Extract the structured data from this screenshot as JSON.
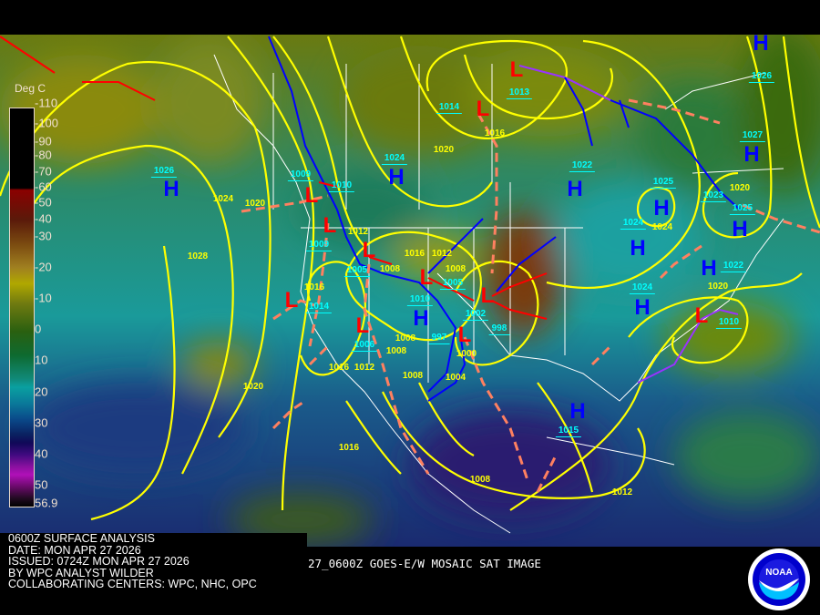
{
  "colorbar": {
    "unit": "Deg C",
    "labels": [
      "-110",
      "-100",
      "-90",
      "-80",
      "-70",
      "-60",
      "-50",
      "-40",
      "-30",
      "-20",
      "-10",
      "0",
      "10",
      "20",
      "30",
      "40",
      "50",
      "56.9"
    ]
  },
  "pressure_systems": [
    "H",
    "H",
    "H",
    "H",
    "H",
    "H",
    "H",
    "H",
    "H",
    "H",
    "H",
    "H",
    "L",
    "L",
    "L",
    "L",
    "L",
    "L",
    "L",
    "L",
    "L",
    "L",
    "L"
  ],
  "center_pressures": [
    "1026",
    "1024",
    "1009",
    "1010",
    "1009",
    "1005",
    "1014",
    "1010",
    "1005",
    "1002",
    "997",
    "998",
    "1006",
    "1014",
    "1013",
    "1022",
    "1025",
    "1024",
    "1023",
    "1026",
    "1027",
    "1025",
    "1022",
    "1024",
    "1010",
    "1015"
  ],
  "isobar_labels": [
    "1024",
    "1020",
    "1028",
    "1012",
    "1008",
    "1016",
    "1012",
    "1008",
    "1016",
    "1008",
    "1008",
    "1000",
    "1004",
    "1016",
    "1012",
    "1008",
    "1020",
    "1016",
    "1008",
    "1012",
    "1016",
    "1020",
    "1024",
    "1020",
    "1020"
  ],
  "info": {
    "title": "0600Z SURFACE ANALYSIS",
    "date": "DATE: MON APR 27 2026",
    "issued": "ISSUED: 0724Z MON APR 27 2026",
    "analyst": "BY WPC ANALYST WILDER",
    "centers": "COLLABORATING CENTERS: WPC, NHC, OPC"
  },
  "satellite_caption": "27_0600Z GOES-E/W MOSAIC SAT IMAGE",
  "logo_text": "NOAA",
  "colors": {
    "high": "#0000ff",
    "low": "#ff0000",
    "isobar": "#ffff00",
    "cold_front": "#0000ff",
    "warm_front": "#ff0000",
    "occluded_front": "#9933ff",
    "trough": "#ff8060",
    "pressure_label": "#00ffff"
  }
}
